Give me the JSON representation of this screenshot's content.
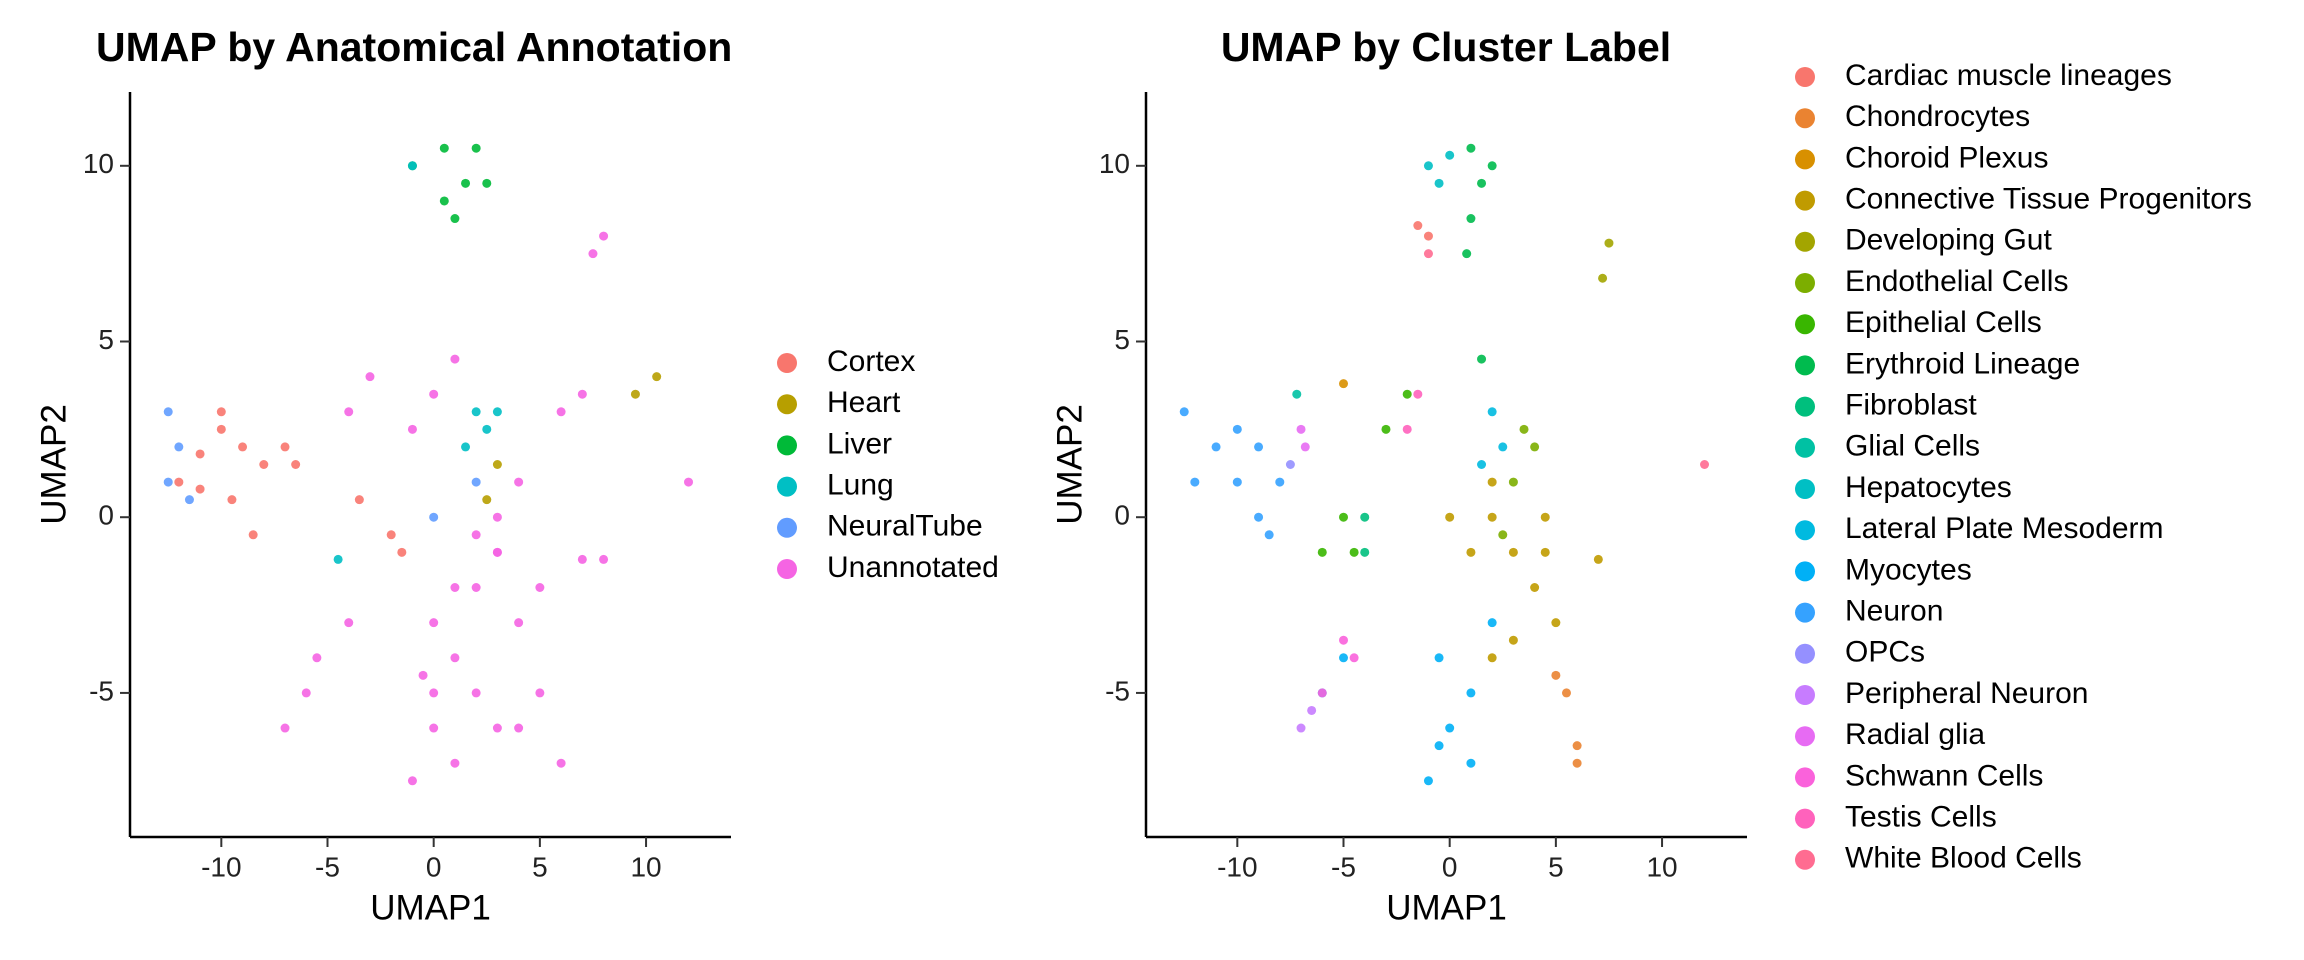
{
  "chart_data": [
    {
      "type": "scatter",
      "title": "UMAP by Anatomical Annotation",
      "xlabel": "UMAP1",
      "ylabel": "UMAP2",
      "xlim": [
        -14.3,
        14
      ],
      "ylim": [
        -9.1,
        12.1
      ],
      "xticks": [
        -10,
        -5,
        0,
        5,
        10
      ],
      "yticks": [
        -5,
        0,
        5,
        10
      ],
      "legend": "right",
      "series": [
        {
          "name": "Cortex",
          "color": "#F8766D",
          "x": [
            -12,
            -11,
            -10,
            -9,
            -8,
            -7,
            -9.5,
            -8.5,
            -6.5,
            -11,
            -10,
            -3.5,
            -2,
            -1.5
          ],
          "y": [
            1,
            1.8,
            2.5,
            2,
            1.5,
            2,
            0.5,
            -0.5,
            1.5,
            0.8,
            3,
            0.5,
            -0.5,
            -1
          ]
        },
        {
          "name": "Heart",
          "color": "#B79F00",
          "x": [
            9.5,
            10.5,
            3,
            2.5
          ],
          "y": [
            3.5,
            4,
            1.5,
            0.5
          ]
        },
        {
          "name": "Liver",
          "color": "#00BA38",
          "x": [
            -1,
            0.5,
            1.5,
            2,
            0.5,
            1,
            2.5
          ],
          "y": [
            10,
            10.5,
            9.5,
            10.5,
            9,
            8.5,
            9.5
          ]
        },
        {
          "name": "Lung",
          "color": "#00BFC4",
          "x": [
            -4.5,
            2,
            3,
            1.5,
            -1,
            2.5
          ],
          "y": [
            -1.2,
            3,
            3,
            2,
            10,
            2.5
          ]
        },
        {
          "name": "NeuralTube",
          "color": "#619CFF",
          "x": [
            -12.5,
            -12,
            -12.5,
            -11.5,
            2,
            0
          ],
          "y": [
            3,
            2,
            1,
            0.5,
            1,
            0
          ]
        },
        {
          "name": "Unannotated",
          "color": "#F564E3",
          "x": [
            0,
            1,
            2,
            3,
            4,
            2,
            0,
            -1,
            1,
            3,
            5,
            6,
            5,
            4,
            7,
            8,
            3,
            6,
            7,
            -5.5,
            -4,
            -7,
            -6,
            -1,
            -4,
            0,
            1,
            8,
            7.5,
            12,
            -3,
            4,
            2,
            1,
            -0.5,
            0,
            3
          ],
          "y": [
            -3,
            -4,
            -2,
            -1,
            -3,
            -5,
            -6,
            -7.5,
            -7,
            -6,
            -5,
            -7,
            -2,
            1,
            -1.2,
            -1.2,
            -1,
            3,
            3.5,
            -4,
            -3,
            -6,
            -5,
            2.5,
            3,
            3.5,
            4.5,
            8,
            7.5,
            1,
            4,
            -6,
            -0.5,
            -2,
            -4.5,
            -5,
            0
          ]
        }
      ]
    },
    {
      "type": "scatter",
      "title": "UMAP by Cluster Label",
      "xlabel": "UMAP1",
      "ylabel": "UMAP2",
      "xlim": [
        -14.3,
        14
      ],
      "ylim": [
        -9.1,
        12.1
      ],
      "xticks": [
        -10,
        -5,
        0,
        5,
        10
      ],
      "yticks": [
        -5,
        0,
        5,
        10
      ],
      "legend": "right",
      "series": [
        {
          "name": "Cardiac muscle lineages",
          "color": "#F8766D",
          "x": [
            -1,
            -1.5
          ],
          "y": [
            8,
            8.3
          ]
        },
        {
          "name": "Chondrocytes",
          "color": "#EA8331",
          "x": [
            5.5,
            6,
            5,
            6
          ],
          "y": [
            -5,
            -6.5,
            -4.5,
            -7
          ]
        },
        {
          "name": "Choroid Plexus",
          "color": "#D89000",
          "x": [
            -5
          ],
          "y": [
            3.8
          ]
        },
        {
          "name": "Connective Tissue Progenitors",
          "color": "#C09B00",
          "x": [
            1,
            2,
            3,
            4,
            3,
            2,
            4.5,
            5,
            7,
            0,
            2,
            4.5
          ],
          "y": [
            -1,
            0,
            -1,
            -2,
            -3.5,
            -4,
            -1,
            -3,
            -1.2,
            0,
            1,
            0
          ]
        },
        {
          "name": "Developing Gut",
          "color": "#A3A500",
          "x": [
            7.5,
            7.2
          ],
          "y": [
            7.8,
            6.8
          ]
        },
        {
          "name": "Endothelial Cells",
          "color": "#7CAE00",
          "x": [
            3.5,
            3,
            4,
            2.5
          ],
          "y": [
            2.5,
            1,
            2,
            -0.5
          ]
        },
        {
          "name": "Epithelial Cells",
          "color": "#39B600",
          "x": [
            -2,
            -3,
            -6,
            -5,
            -4.5
          ],
          "y": [
            3.5,
            2.5,
            -1,
            0,
            -1
          ]
        },
        {
          "name": "Erythroid Lineage",
          "color": "#00BB4E",
          "x": [
            1,
            1.5,
            2,
            1,
            1.5,
            0.8
          ],
          "y": [
            10.5,
            9.5,
            10,
            8.5,
            4.5,
            7.5
          ]
        },
        {
          "name": "Fibroblast",
          "color": "#00BF7D",
          "x": [
            -4,
            -4
          ],
          "y": [
            0,
            -1
          ]
        },
        {
          "name": "Glial Cells",
          "color": "#00C1A3",
          "x": [
            -7.2
          ],
          "y": [
            3.5
          ]
        },
        {
          "name": "Hepatocytes",
          "color": "#00BFC4",
          "x": [
            -1,
            -0.5,
            0
          ],
          "y": [
            10,
            9.5,
            10.3
          ]
        },
        {
          "name": "Lateral Plate Mesoderm",
          "color": "#00BAE0",
          "x": [
            2,
            2.5,
            1.5
          ],
          "y": [
            3,
            2,
            1.5
          ]
        },
        {
          "name": "Myocytes",
          "color": "#00B0F6",
          "x": [
            1,
            0,
            -1,
            -0.5,
            2,
            1,
            -0.5,
            -5,
            -6
          ],
          "y": [
            -5,
            -6,
            -7.5,
            -4,
            -3,
            -7,
            -6.5,
            -4,
            -5
          ]
        },
        {
          "name": "Neuron",
          "color": "#35A2FF",
          "x": [
            -12,
            -11,
            -10,
            -9,
            -8,
            -9,
            -8.5,
            -12.5,
            -10
          ],
          "y": [
            1,
            2,
            2.5,
            2,
            1,
            0,
            -0.5,
            3,
            1
          ]
        },
        {
          "name": "OPCs",
          "color": "#9590FF",
          "x": [
            -7.5
          ],
          "y": [
            1.5
          ]
        },
        {
          "name": "Peripheral Neuron",
          "color": "#C77CFF",
          "x": [
            -7,
            -6.5
          ],
          "y": [
            -6,
            -5.5
          ]
        },
        {
          "name": "Radial glia",
          "color": "#E76BF3",
          "x": [
            -6.8,
            -7
          ],
          "y": [
            2,
            2.5
          ]
        },
        {
          "name": "Schwann Cells",
          "color": "#FA62DB",
          "x": [
            -5,
            -4.5,
            -6
          ],
          "y": [
            -3.5,
            -4,
            -5
          ]
        },
        {
          "name": "Testis Cells",
          "color": "#FF62BC",
          "x": [
            -1.5,
            -2
          ],
          "y": [
            3.5,
            2.5
          ]
        },
        {
          "name": "White Blood Cells",
          "color": "#FF6C91",
          "x": [
            12,
            -1
          ],
          "y": [
            1.5,
            7.5
          ]
        }
      ]
    }
  ]
}
